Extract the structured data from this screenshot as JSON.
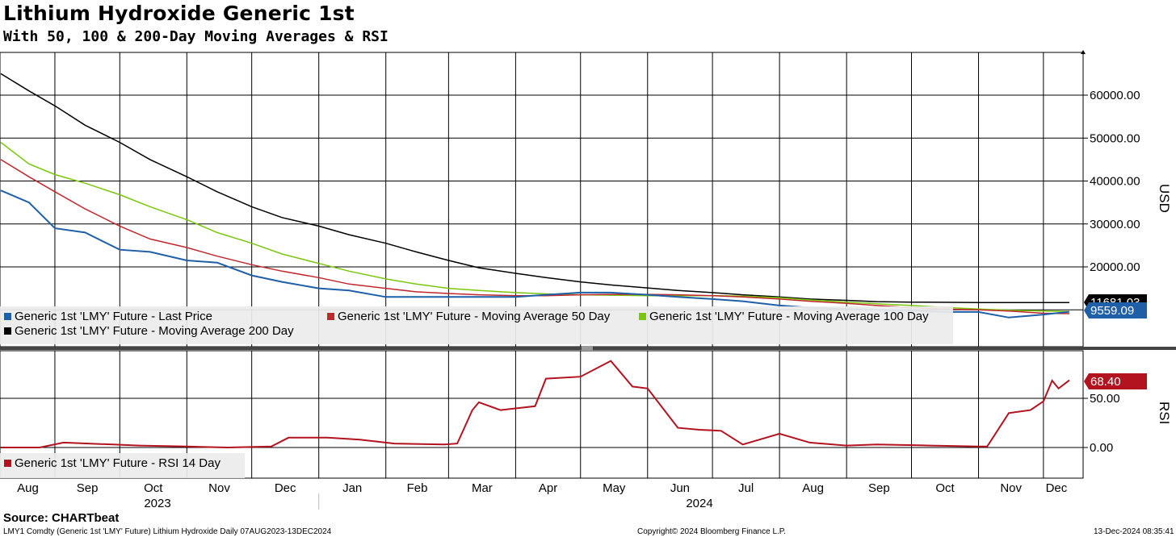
{
  "header": {
    "title": "Lithium Hydroxide Generic 1st",
    "subtitle": "With 50, 100 & 200-Day Moving Averages & RSI"
  },
  "footer": {
    "source": "Source: CHARTbeat",
    "left": "LMY1 Comdty (Generic 1st 'LMY' Future) Lithium Hydroxide  Daily 07AUG2023-13DEC2024",
    "center": "Copyright© 2024 Bloomberg Finance L.P.",
    "right": "13-Dec-2024 08:35:41"
  },
  "colors": {
    "last_price": "#1f5fa8",
    "ma50": "#c0282d",
    "ma100": "#7ac70c",
    "ma200": "#000000",
    "rsi": "#b3121f",
    "label_blue": "#1f5fa8",
    "label_red": "#b3121f",
    "grid": "#000000"
  },
  "chart_data": [
    {
      "type": "line",
      "title": "Lithium Hydroxide Generic 1st",
      "ylabel": "USD",
      "ylim": [
        -8000,
        70000
      ],
      "yticks": [
        "60000.00",
        "50000.00",
        "40000.00",
        "30000.00",
        "20000.00"
      ],
      "ytick_values": [
        60000,
        50000,
        40000,
        30000,
        20000
      ],
      "x": [
        "2023-08-07",
        "2023-08-20",
        "2023-09-01",
        "2023-09-15",
        "2023-10-01",
        "2023-10-15",
        "2023-11-01",
        "2023-11-15",
        "2023-12-01",
        "2023-12-15",
        "2024-01-01",
        "2024-01-15",
        "2024-02-01",
        "2024-02-15",
        "2024-03-01",
        "2024-03-15",
        "2024-04-01",
        "2024-04-15",
        "2024-05-01",
        "2024-05-15",
        "2024-06-01",
        "2024-06-15",
        "2024-07-01",
        "2024-07-15",
        "2024-08-01",
        "2024-08-15",
        "2024-09-01",
        "2024-09-15",
        "2024-10-01",
        "2024-10-15",
        "2024-11-01",
        "2024-11-15",
        "2024-12-01",
        "2024-12-13"
      ],
      "series": [
        {
          "name": "Generic 1st 'LMY' Future - Last Price",
          "color_key": "last_price",
          "last_label": "9559.09",
          "values": [
            37800,
            35000,
            29000,
            28000,
            24000,
            23500,
            21500,
            21000,
            18000,
            16500,
            15000,
            14500,
            13000,
            13000,
            13000,
            13000,
            13000,
            13500,
            14000,
            14000,
            13500,
            13000,
            12500,
            12000,
            11000,
            10500,
            10200,
            10000,
            9800,
            9500,
            9500,
            8200,
            8900,
            9559
          ]
        },
        {
          "name": "Generic 1st 'LMY' Future - Moving Average 50 Day",
          "color_key": "ma50",
          "values": [
            45000,
            41000,
            37500,
            33500,
            29500,
            26500,
            24500,
            22500,
            20500,
            19000,
            17500,
            16000,
            15000,
            14200,
            13800,
            13500,
            13300,
            13300,
            13500,
            13600,
            13600,
            13500,
            13300,
            13000,
            12500,
            12000,
            11500,
            11000,
            10500,
            10200,
            10000,
            9700,
            9200,
            9100
          ]
        },
        {
          "name": "Generic 1st 'LMY' Future - Moving Average 100 Day",
          "color_key": "ma100",
          "values": [
            49000,
            44000,
            41500,
            39500,
            36800,
            34000,
            31000,
            28000,
            25500,
            23000,
            20800,
            19000,
            17200,
            16000,
            15000,
            14500,
            14000,
            13700,
            13500,
            13400,
            13300,
            13300,
            13300,
            13200,
            12800,
            12300,
            11800,
            11400,
            11000,
            10600,
            10200,
            9900,
            9700,
            9600
          ]
        },
        {
          "name": "Generic 1st 'LMY' Future - Moving Average 200 Day",
          "color_key": "ma200",
          "last_label": "11681.03",
          "values": [
            65000,
            61000,
            57500,
            53000,
            49000,
            45000,
            41000,
            37500,
            34000,
            31500,
            29500,
            27500,
            25500,
            23500,
            21500,
            19800,
            18500,
            17500,
            16500,
            15800,
            15100,
            14500,
            14000,
            13500,
            13000,
            12500,
            12200,
            11900,
            11800,
            11750,
            11700,
            11690,
            11685,
            11681
          ]
        }
      ]
    },
    {
      "type": "line",
      "ylabel": "RSI",
      "ylim": [
        -30,
        92
      ],
      "yticks": [
        "50.00",
        "0.00"
      ],
      "ytick_values": [
        50,
        0
      ],
      "series": [
        {
          "name": "Generic 1st 'LMY' Future - RSI 14 Day",
          "color_key": "rsi",
          "last_label": "68.40",
          "x": [
            "2023-08-07",
            "2023-08-25",
            "2023-09-05",
            "2023-09-28",
            "2023-10-10",
            "2023-11-01",
            "2023-11-20",
            "2023-12-10",
            "2023-12-18",
            "2024-01-05",
            "2024-01-20",
            "2024-02-05",
            "2024-02-28",
            "2024-03-05",
            "2024-03-12",
            "2024-03-15",
            "2024-03-25",
            "2024-04-10",
            "2024-04-15",
            "2024-05-01",
            "2024-05-15",
            "2024-05-25",
            "2024-06-01",
            "2024-06-15",
            "2024-06-25",
            "2024-07-05",
            "2024-07-15",
            "2024-08-01",
            "2024-08-15",
            "2024-09-01",
            "2024-09-15",
            "2024-10-10",
            "2024-11-01",
            "2024-11-05",
            "2024-11-15",
            "2024-11-25",
            "2024-12-01",
            "2024-12-05",
            "2024-12-08",
            "2024-12-13"
          ],
          "values": [
            0,
            0,
            5,
            3,
            2,
            1,
            0,
            1,
            10,
            10,
            8,
            4,
            3,
            4,
            38,
            46,
            38,
            42,
            70,
            72,
            88,
            62,
            60,
            20,
            18,
            17,
            3,
            14,
            5,
            2,
            3,
            2,
            1,
            1,
            35,
            38,
            47,
            68,
            60,
            68.4
          ]
        }
      ]
    }
  ],
  "x_axis": {
    "months": [
      "Aug",
      "Sep",
      "Oct",
      "Nov",
      "Dec",
      "Jan",
      "Feb",
      "Mar",
      "Apr",
      "May",
      "Jun",
      "Jul",
      "Aug",
      "Sep",
      "Oct",
      "Nov",
      "Dec"
    ],
    "years": [
      "2023",
      "2024"
    ]
  }
}
